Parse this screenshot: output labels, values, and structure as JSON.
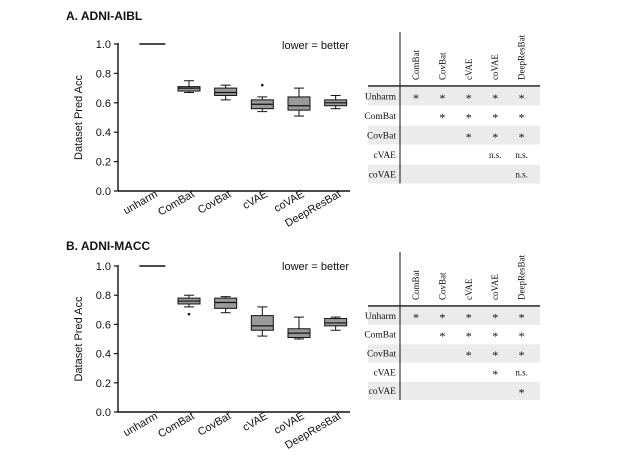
{
  "chart_data": [
    {
      "type": "boxplot",
      "title": "A. ADNI-AIBL",
      "ylabel": "Dataset Pred Acc",
      "annotation": "lower = better",
      "ylim": [
        0,
        1.0
      ],
      "yticks": [
        "0.0",
        "0.2",
        "0.4",
        "0.6",
        "0.8",
        "1.0"
      ],
      "categories": [
        "unharm",
        "ComBat",
        "CovBat",
        "cVAE",
        "coVAE",
        "DeepResBat"
      ],
      "boxes": [
        {
          "name": "unharm",
          "min": 1.0,
          "q1": 1.0,
          "median": 1.0,
          "q3": 1.0,
          "max": 1.0,
          "outliers": []
        },
        {
          "name": "ComBat",
          "min": 0.67,
          "q1": 0.68,
          "median": 0.7,
          "q3": 0.71,
          "max": 0.75,
          "outliers": []
        },
        {
          "name": "CovBat",
          "min": 0.62,
          "q1": 0.65,
          "median": 0.67,
          "q3": 0.7,
          "max": 0.72,
          "outliers": []
        },
        {
          "name": "cVAE",
          "min": 0.54,
          "q1": 0.56,
          "median": 0.59,
          "q3": 0.62,
          "max": 0.64,
          "outliers": [
            0.72
          ]
        },
        {
          "name": "coVAE",
          "min": 0.51,
          "q1": 0.55,
          "median": 0.58,
          "q3": 0.64,
          "max": 0.7,
          "outliers": []
        },
        {
          "name": "DeepResBat",
          "min": 0.56,
          "q1": 0.58,
          "median": 0.6,
          "q3": 0.62,
          "max": 0.65,
          "outliers": []
        }
      ],
      "significance_table": {
        "columns": [
          "ComBat",
          "CovBat",
          "cVAE",
          "coVAE",
          "DeepResBat"
        ],
        "rows": [
          {
            "label": "Unharm",
            "cells": [
              "*",
              "*",
              "*",
              "*",
              "*"
            ]
          },
          {
            "label": "ComBat",
            "cells": [
              "",
              "*",
              "*",
              "*",
              "*"
            ]
          },
          {
            "label": "CovBat",
            "cells": [
              "",
              "",
              "*",
              "*",
              "*"
            ]
          },
          {
            "label": "cVAE",
            "cells": [
              "",
              "",
              "",
              "n.s.",
              "n.s."
            ]
          },
          {
            "label": "coVAE",
            "cells": [
              "",
              "",
              "",
              "",
              "n.s."
            ]
          }
        ]
      }
    },
    {
      "type": "boxplot",
      "title": "B. ADNI-MACC",
      "ylabel": "Dataset Pred Acc",
      "annotation": "lower = better",
      "ylim": [
        0,
        1.0
      ],
      "yticks": [
        "0.0",
        "0.2",
        "0.4",
        "0.6",
        "0.8",
        "1.0"
      ],
      "categories": [
        "unharm",
        "ComBat",
        "CovBat",
        "cVAE",
        "coVAE",
        "DeepResBat"
      ],
      "boxes": [
        {
          "name": "unharm",
          "min": 1.0,
          "q1": 1.0,
          "median": 1.0,
          "q3": 1.0,
          "max": 1.0,
          "outliers": []
        },
        {
          "name": "ComBat",
          "min": 0.72,
          "q1": 0.74,
          "median": 0.76,
          "q3": 0.78,
          "max": 0.8,
          "outliers": [
            0.67
          ]
        },
        {
          "name": "CovBat",
          "min": 0.68,
          "q1": 0.71,
          "median": 0.75,
          "q3": 0.78,
          "max": 0.79,
          "outliers": []
        },
        {
          "name": "cVAE",
          "min": 0.52,
          "q1": 0.56,
          "median": 0.59,
          "q3": 0.66,
          "max": 0.72,
          "outliers": []
        },
        {
          "name": "coVAE",
          "min": 0.5,
          "q1": 0.51,
          "median": 0.54,
          "q3": 0.57,
          "max": 0.65,
          "outliers": []
        },
        {
          "name": "DeepResBat",
          "min": 0.56,
          "q1": 0.59,
          "median": 0.61,
          "q3": 0.64,
          "max": 0.65,
          "outliers": []
        }
      ],
      "significance_table": {
        "columns": [
          "ComBat",
          "CovBat",
          "cVAE",
          "coVAE",
          "DeepResBat"
        ],
        "rows": [
          {
            "label": "Unharm",
            "cells": [
              "*",
              "*",
              "*",
              "*",
              "*"
            ]
          },
          {
            "label": "ComBat",
            "cells": [
              "",
              "*",
              "*",
              "*",
              "*"
            ]
          },
          {
            "label": "CovBat",
            "cells": [
              "",
              "",
              "*",
              "*",
              "*"
            ]
          },
          {
            "label": "cVAE",
            "cells": [
              "",
              "",
              "",
              "*",
              "n.s."
            ]
          },
          {
            "label": "coVAE",
            "cells": [
              "",
              "",
              "",
              "",
              "*"
            ]
          }
        ]
      }
    }
  ],
  "colors": {
    "box_fill": "#9a9a9a",
    "line": "#111111",
    "row_shade": "#ebebeb"
  }
}
